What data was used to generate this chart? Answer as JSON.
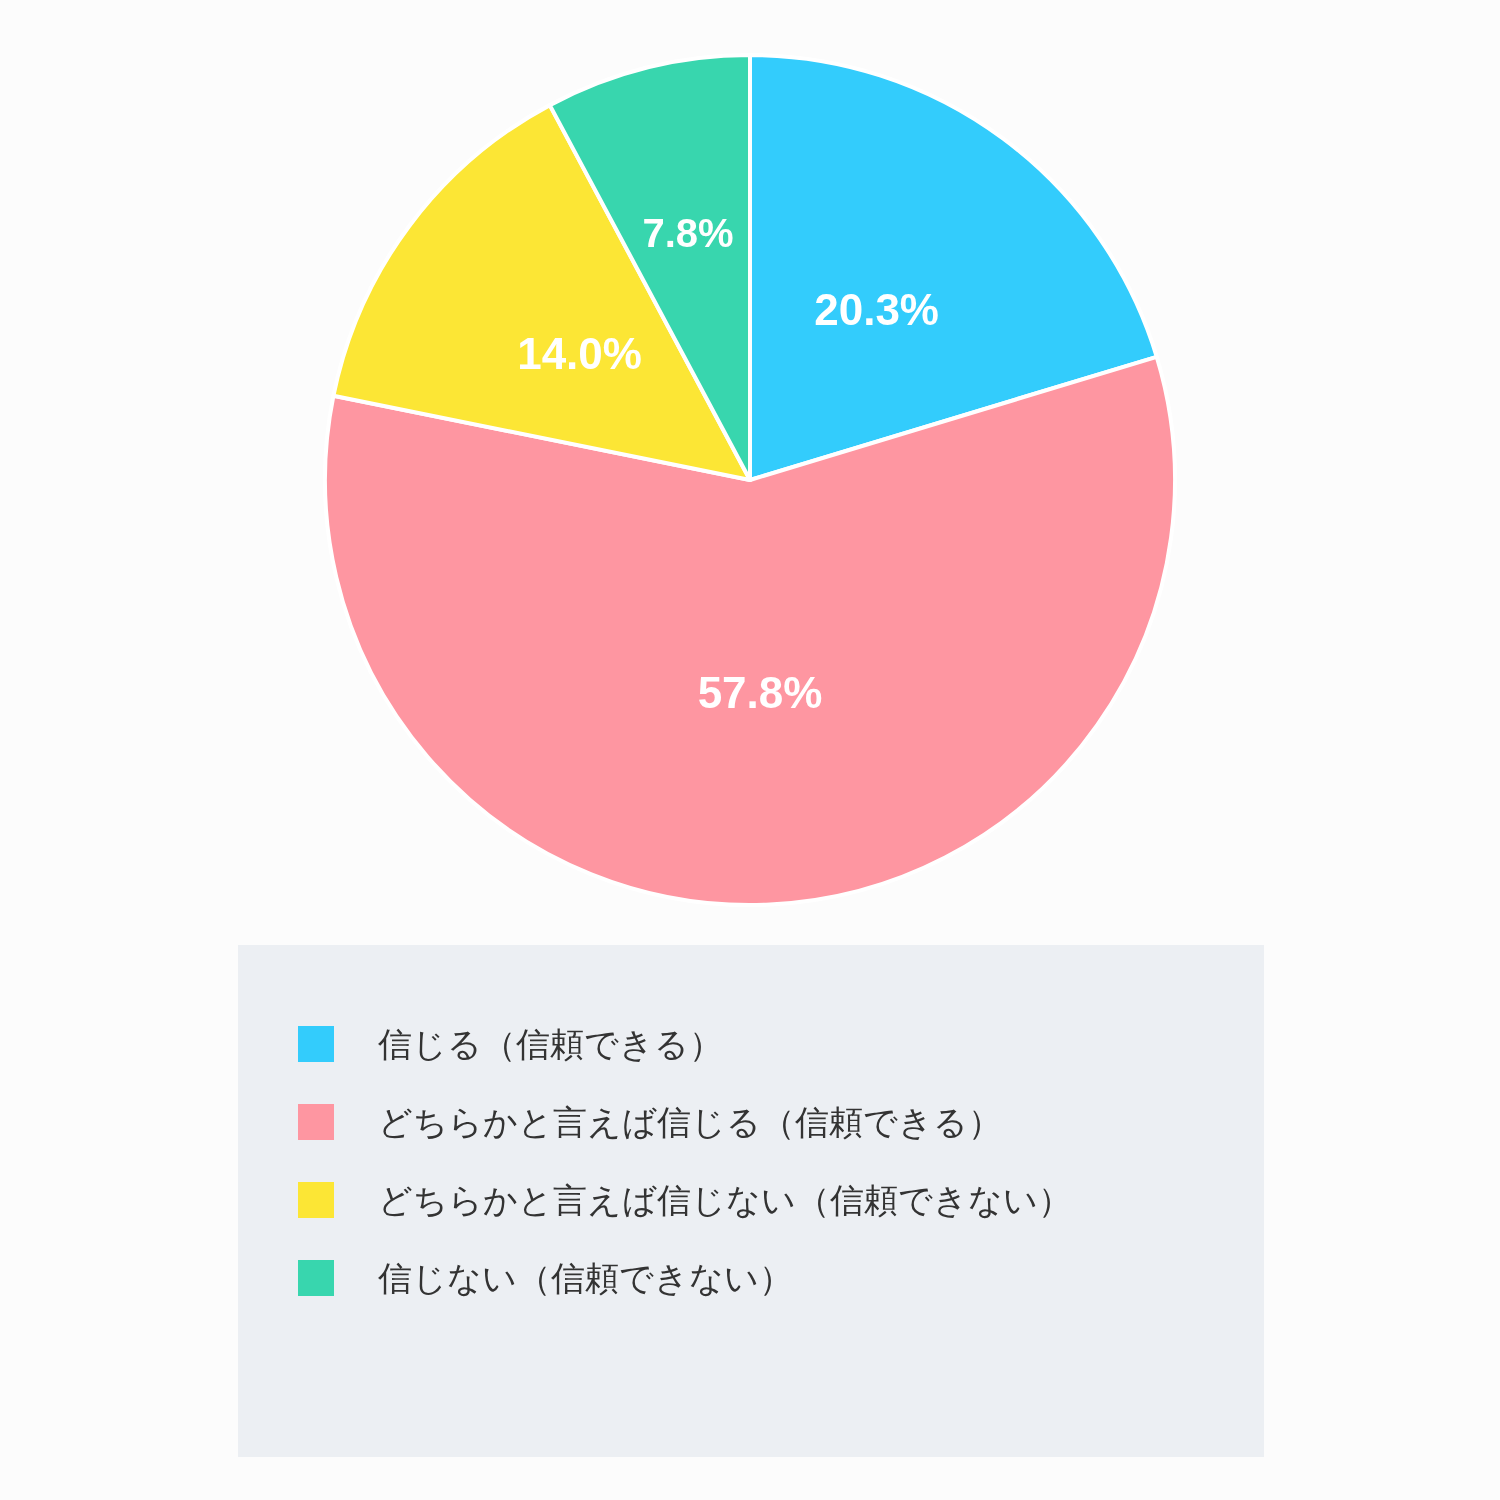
{
  "chart_data": {
    "type": "pie",
    "categories": [
      "信じる（信頼できる）",
      "どちらかと言えば信じる（信頼できる）",
      "どちらかと言えば信じない（信頼できない）",
      "信じない（信頼できない）"
    ],
    "values": [
      20.3,
      57.8,
      14.0,
      7.8
    ],
    "value_labels": [
      "20.3%",
      "57.8%",
      "14.0%",
      "7.8%"
    ],
    "colors": [
      "#33ccfc",
      "#fe96a1",
      "#fce635",
      "#38d6ae"
    ],
    "legend": "bottom"
  }
}
